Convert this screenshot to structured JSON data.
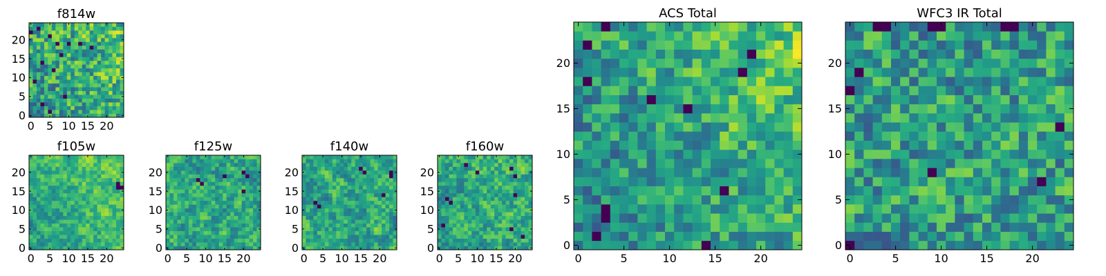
{
  "chart_data": [
    {
      "type": "heatmap",
      "id": "f814w",
      "title": "f814w",
      "grid_size": 25,
      "xlim": [
        0,
        24
      ],
      "ylim": [
        0,
        24
      ],
      "xticks": [
        "0",
        "5",
        "10",
        "15",
        "20"
      ],
      "yticks": [
        "0",
        "5",
        "10",
        "15",
        "20"
      ],
      "colormap": "viridis",
      "seed": 11,
      "smoothness": 0.2,
      "bias": 0.62,
      "spread": 0.32,
      "trend": 0.1,
      "dark_cells": [
        [
          2,
          23
        ],
        [
          0,
          22
        ],
        [
          5,
          21
        ],
        [
          7,
          19
        ],
        [
          10,
          19
        ],
        [
          13,
          19
        ],
        [
          16,
          18
        ],
        [
          8,
          16
        ],
        [
          3,
          14
        ],
        [
          6,
          12
        ],
        [
          1,
          9
        ],
        [
          9,
          5
        ],
        [
          3,
          3
        ],
        [
          5,
          1
        ]
      ]
    },
    {
      "type": "heatmap",
      "id": "f105w",
      "title": "f105w",
      "grid_size": 25,
      "xlim": [
        0,
        24
      ],
      "ylim": [
        0,
        24
      ],
      "xticks": [
        "0",
        "5",
        "10",
        "15",
        "20"
      ],
      "yticks": [
        "0",
        "5",
        "10",
        "15",
        "20"
      ],
      "colormap": "viridis",
      "seed": 23,
      "smoothness": 0.55,
      "bias": 0.66,
      "spread": 0.3,
      "trend": 0.12,
      "dark_cells": [
        [
          23,
          17
        ],
        [
          23,
          16
        ],
        [
          24,
          16
        ]
      ]
    },
    {
      "type": "heatmap",
      "id": "f125w",
      "title": "f125w",
      "grid_size": 25,
      "xlim": [
        0,
        24
      ],
      "ylim": [
        0,
        24
      ],
      "xticks": [
        "0",
        "5",
        "10",
        "15",
        "20"
      ],
      "yticks": [
        "0",
        "5",
        "10",
        "15",
        "20"
      ],
      "colormap": "viridis",
      "seed": 37,
      "smoothness": 0.5,
      "bias": 0.6,
      "spread": 0.32,
      "trend": 0.0,
      "dark_cells": [
        [
          8,
          18
        ],
        [
          9,
          17
        ],
        [
          20,
          20
        ],
        [
          21,
          19
        ],
        [
          15,
          19
        ],
        [
          20,
          15
        ]
      ]
    },
    {
      "type": "heatmap",
      "id": "f140w",
      "title": "f140w",
      "grid_size": 25,
      "xlim": [
        0,
        24
      ],
      "ylim": [
        0,
        24
      ],
      "xticks": [
        "0",
        "5",
        "10",
        "15",
        "20"
      ],
      "yticks": [
        "0",
        "5",
        "10",
        "15",
        "20"
      ],
      "colormap": "viridis",
      "seed": 51,
      "smoothness": 0.5,
      "bias": 0.6,
      "spread": 0.32,
      "trend": 0.0,
      "dark_cells": [
        [
          15,
          21
        ],
        [
          16,
          20
        ],
        [
          23,
          20
        ],
        [
          23,
          19
        ],
        [
          21,
          14
        ],
        [
          3,
          12
        ],
        [
          4,
          11
        ]
      ]
    },
    {
      "type": "heatmap",
      "id": "f160w",
      "title": "f160w",
      "grid_size": 25,
      "xlim": [
        0,
        24
      ],
      "ylim": [
        0,
        24
      ],
      "xticks": [
        "0",
        "5",
        "10",
        "15",
        "20"
      ],
      "yticks": [
        "0",
        "5",
        "10",
        "15",
        "20"
      ],
      "colormap": "viridis",
      "seed": 67,
      "smoothness": 0.5,
      "bias": 0.62,
      "spread": 0.32,
      "trend": 0.05,
      "dark_cells": [
        [
          7,
          22
        ],
        [
          10,
          20
        ],
        [
          19,
          21
        ],
        [
          20,
          19
        ],
        [
          2,
          13
        ],
        [
          3,
          12
        ],
        [
          20,
          14
        ],
        [
          19,
          5
        ],
        [
          1,
          6
        ],
        [
          22,
          3
        ]
      ]
    },
    {
      "type": "heatmap",
      "id": "acs_total",
      "title": "ACS Total",
      "grid_size": 25,
      "xlim": [
        0,
        24
      ],
      "ylim": [
        0,
        24
      ],
      "xticks": [
        "0",
        "5",
        "10",
        "15",
        "20"
      ],
      "yticks": [
        "0",
        "5",
        "10",
        "15",
        "20"
      ],
      "colormap": "viridis",
      "seed": 83,
      "smoothness": 0.3,
      "bias": 0.6,
      "spread": 0.3,
      "trend": 0.18,
      "dark_cells": [
        [
          3,
          24
        ],
        [
          1,
          22
        ],
        [
          19,
          21
        ],
        [
          1,
          18
        ],
        [
          18,
          19
        ],
        [
          8,
          16
        ],
        [
          12,
          15
        ],
        [
          16,
          6
        ],
        [
          3,
          3
        ],
        [
          3,
          4
        ],
        [
          2,
          1
        ],
        [
          14,
          0
        ]
      ]
    },
    {
      "type": "heatmap",
      "id": "wfc3_ir_total",
      "title": "WFC3 IR Total",
      "grid_size": 25,
      "xlim": [
        0,
        24
      ],
      "ylim": [
        0,
        24
      ],
      "xticks": [
        "0",
        "5",
        "10",
        "15",
        "20"
      ],
      "yticks": [
        "0",
        "5",
        "10",
        "15",
        "20"
      ],
      "colormap": "viridis",
      "seed": 97,
      "smoothness": 0.25,
      "bias": 0.55,
      "spread": 0.32,
      "trend": 0.0,
      "dark_cells": [
        [
          3,
          24
        ],
        [
          4,
          24
        ],
        [
          9,
          24
        ],
        [
          10,
          24
        ],
        [
          17,
          24
        ],
        [
          18,
          24
        ],
        [
          1,
          19
        ],
        [
          0,
          17
        ],
        [
          23,
          13
        ],
        [
          9,
          8
        ],
        [
          21,
          7
        ],
        [
          0,
          0
        ]
      ]
    }
  ]
}
